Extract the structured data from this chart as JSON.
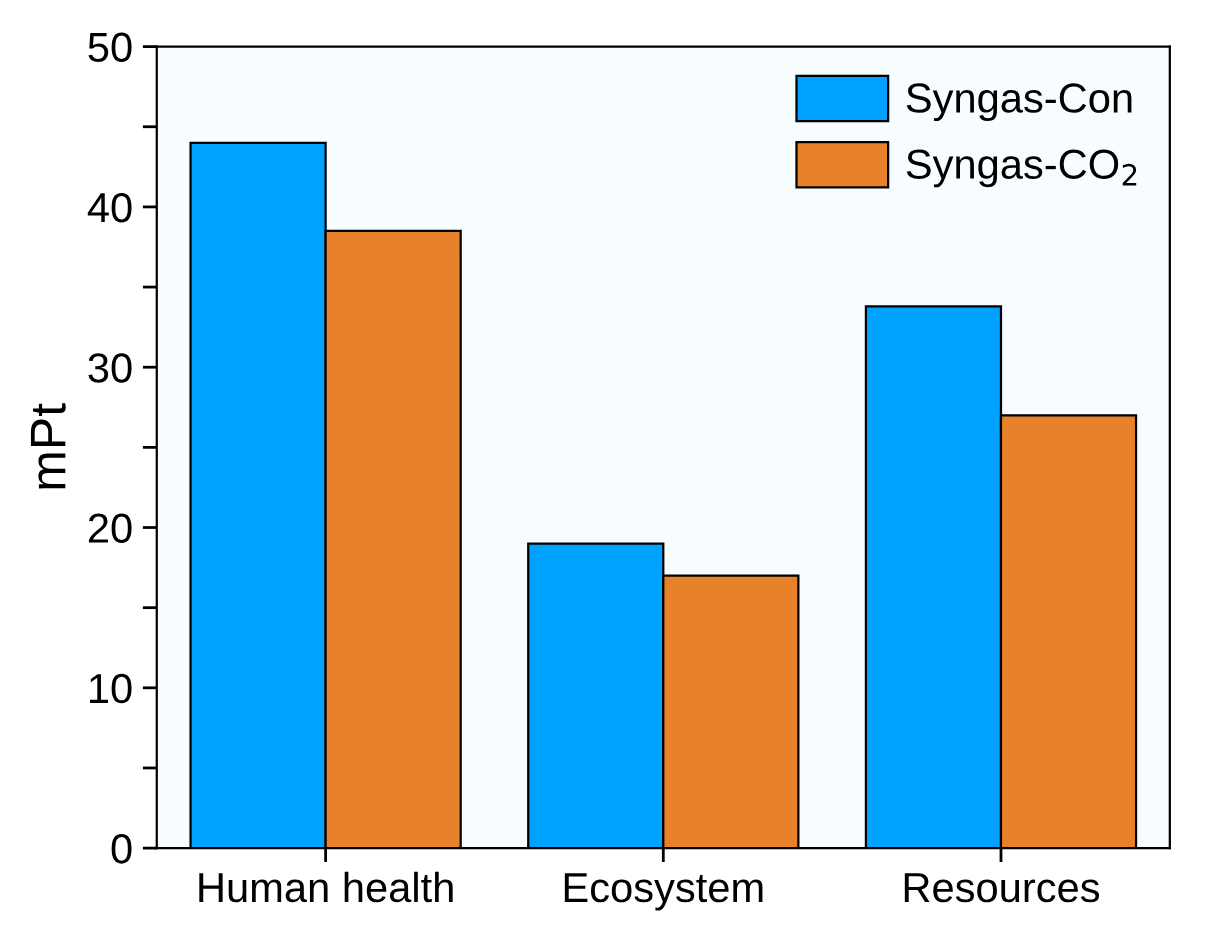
{
  "chart_data": {
    "type": "bar",
    "ylabel": "mPt",
    "categories": [
      "Human health",
      "Ecosystem",
      "Resources"
    ],
    "series": [
      {
        "name": "Syngas-Con",
        "color": "#00a2ff",
        "values": [
          44,
          19,
          33.8
        ]
      },
      {
        "name": "Syngas-CO$_{2}$",
        "color": "#e8822a",
        "values": [
          38.5,
          17,
          27
        ]
      }
    ],
    "ylim": [
      0,
      50
    ],
    "yticks": [
      0,
      {
        "value": 5,
        "label": null
      },
      10,
      {
        "value": 15,
        "label": null
      },
      20,
      {
        "value": 25,
        "label": null
      },
      30,
      {
        "value": 35,
        "label": null
      },
      40,
      {
        "value": 45,
        "label": null
      },
      50
    ],
    "legend": "top right",
    "grid": false
  }
}
